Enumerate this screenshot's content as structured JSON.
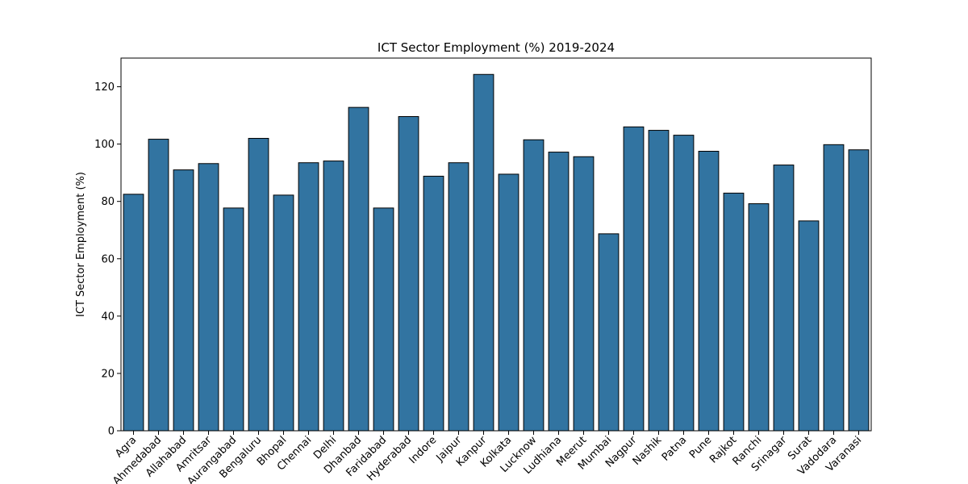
{
  "chart_data": {
    "type": "bar",
    "title": "ICT Sector Employment (%) 2019-2024",
    "xlabel": "",
    "ylabel": "ICT Sector Employment (%)",
    "ylim": [
      0,
      130
    ],
    "yticks": [
      0,
      20,
      40,
      60,
      80,
      100,
      120
    ],
    "grid": false,
    "bar_color": "#3274a1",
    "categories": [
      "Agra",
      "Ahmedabad",
      "Allahabad",
      "Amritsar",
      "Aurangabad",
      "Bengaluru",
      "Bhopal",
      "Chennai",
      "Delhi",
      "Dhanbad",
      "Faridabad",
      "Hyderabad",
      "Indore",
      "Jaipur",
      "Kanpur",
      "Kolkata",
      "Lucknow",
      "Ludhiana",
      "Meerut",
      "Mumbai",
      "Nagpur",
      "Nashik",
      "Patna",
      "Pune",
      "Rajkot",
      "Ranchi",
      "Srinagar",
      "Surat",
      "Vadodara",
      "Varanasi"
    ],
    "values": [
      82.5,
      101.7,
      91.0,
      93.2,
      77.7,
      102.0,
      82.2,
      93.5,
      94.1,
      112.8,
      77.7,
      109.6,
      88.8,
      93.5,
      124.3,
      89.5,
      101.5,
      97.2,
      95.6,
      68.7,
      106.0,
      104.8,
      103.1,
      97.5,
      82.9,
      79.2,
      92.7,
      73.2,
      99.8,
      98.0
    ]
  }
}
